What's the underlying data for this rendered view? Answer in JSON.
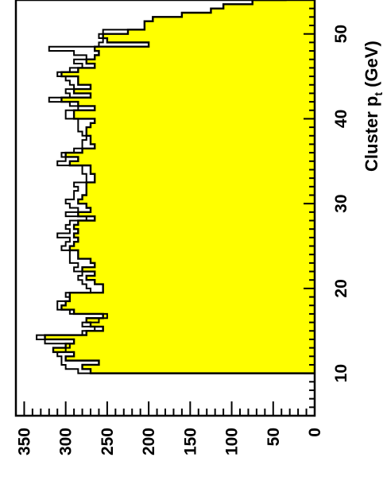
{
  "chart_data": {
    "type": "histogram",
    "orientation": "rotated-90-clockwise",
    "xlabel_main": "Cluster p",
    "xlabel_sub": "t",
    "xlabel_unit": " (GeV)",
    "xlim": [
      5,
      54
    ],
    "ylim": [
      0,
      360
    ],
    "x_ticks": [
      10,
      20,
      30,
      40,
      50
    ],
    "x_tick_labels": [
      "10",
      "20",
      "30",
      "40",
      "50"
    ],
    "y_ticks": [
      0,
      50,
      100,
      150,
      200,
      250,
      300,
      350
    ],
    "y_tick_labels": [
      "0",
      "50",
      "100",
      "150",
      "200",
      "250",
      "300",
      "350"
    ],
    "fill_color": "#ffff00",
    "line_color": "#000000",
    "bin_width": 0.5,
    "series": [
      {
        "name": "filled",
        "x_start": 10,
        "values": [
          270,
          280,
          260,
          300,
          290,
          315,
          300,
          290,
          325,
          275,
          255,
          270,
          275,
          255,
          290,
          305,
          300,
          295,
          295,
          255,
          255,
          265,
          275,
          265,
          280,
          265,
          270,
          285,
          285,
          295,
          290,
          285,
          290,
          285,
          290,
          285,
          265,
          285,
          270,
          275,
          285,
          280,
          275,
          275,
          275,
          265,
          265,
          270,
          270,
          295,
          285,
          300,
          280,
          265,
          270,
          270,
          275,
          275,
          270,
          265,
          290,
          290,
          265,
          285,
          305,
          270,
          290,
          270,
          285,
          285,
          305,
          285,
          265,
          275,
          265,
          260,
          265,
          200,
          250,
          255,
          225,
          205,
          205,
          195,
          160,
          125,
          110,
          75,
          35,
          20,
          8,
          3,
          0
        ]
      },
      {
        "name": "outline",
        "x_start": 10,
        "values": [
          285,
          300,
          305,
          305,
          310,
          300,
          295,
          325,
          335,
          280,
          265,
          280,
          260,
          250,
          295,
          310,
          310,
          295,
          300,
          270,
          275,
          280,
          285,
          280,
          290,
          285,
          295,
          295,
          295,
          305,
          300,
          295,
          310,
          295,
          300,
          295,
          275,
          300,
          285,
          295,
          300,
          290,
          290,
          285,
          290,
          275,
          275,
          280,
          280,
          310,
          300,
          305,
          290,
          280,
          280,
          275,
          280,
          285,
          285,
          285,
          300,
          300,
          285,
          295,
          320,
          295,
          300,
          290,
          295,
          300,
          310,
          295,
          280,
          290,
          275,
          290,
          320,
          260,
          255,
          260,
          255,
          205,
          205,
          195,
          160,
          125,
          110,
          75,
          35,
          20,
          8,
          3,
          0
        ]
      }
    ]
  }
}
